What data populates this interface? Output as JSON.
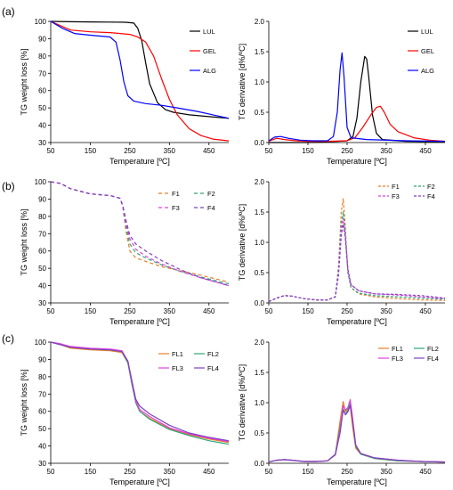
{
  "panel_labels": [
    "(a)",
    "(b)",
    "(c)"
  ],
  "chart_data": [
    {
      "type": "line",
      "panel": "(a)",
      "xlabel": "Temperature [ºC]",
      "ylabel": "TG weight loss [%]",
      "xlim": [
        50,
        500
      ],
      "ylim": [
        30,
        100
      ],
      "xticks": [
        "50",
        "150",
        "250",
        "350",
        "450"
      ],
      "yticks": [
        "30",
        "40",
        "50",
        "60",
        "70",
        "80",
        "90",
        "100"
      ],
      "legend_position": "right",
      "series": [
        {
          "name": "LUL",
          "color": "#000000",
          "dash": "solid",
          "x": [
            50,
            100,
            150,
            200,
            240,
            260,
            270,
            280,
            290,
            300,
            320,
            340,
            360,
            400,
            450,
            500
          ],
          "y": [
            100,
            99.8,
            99.7,
            99.6,
            99.5,
            99,
            96,
            89,
            76,
            64,
            53,
            49,
            47.5,
            46,
            45,
            44
          ]
        },
        {
          "name": "GEL",
          "color": "#ff0000",
          "dash": "solid",
          "x": [
            50,
            100,
            150,
            200,
            250,
            270,
            290,
            310,
            330,
            350,
            370,
            400,
            430,
            460,
            500
          ],
          "y": [
            100,
            95,
            94,
            93.5,
            92.5,
            91,
            88,
            80,
            67,
            55,
            46,
            38,
            34,
            32,
            31
          ]
        },
        {
          "name": "ALG",
          "color": "#0000ff",
          "dash": "solid",
          "x": [
            50,
            80,
            110,
            150,
            200,
            215,
            225,
            235,
            245,
            260,
            290,
            330,
            370,
            420,
            460,
            500
          ],
          "y": [
            100,
            96,
            93,
            92,
            91,
            88,
            78,
            65,
            57,
            54,
            52.5,
            51.5,
            50,
            48,
            46,
            44
          ]
        }
      ]
    },
    {
      "type": "line",
      "panel": "(a)",
      "xlabel": "Temperature [ºC]",
      "ylabel": "TG derivative [d%/ºC]",
      "xlim": [
        50,
        500
      ],
      "ylim": [
        0,
        2.0
      ],
      "xticks": [
        "50",
        "150",
        "250",
        "350",
        "450"
      ],
      "yticks": [
        "0.0",
        "0.5",
        "1.0",
        "1.5",
        "2.0"
      ],
      "legend_position": "right",
      "series": [
        {
          "name": "LUL",
          "color": "#000000",
          "dash": "solid",
          "x": [
            50,
            100,
            150,
            200,
            250,
            265,
            275,
            285,
            295,
            300,
            305,
            315,
            325,
            340,
            400,
            500
          ],
          "y": [
            0,
            0,
            0,
            0.01,
            0.03,
            0.1,
            0.4,
            1.0,
            1.42,
            1.38,
            1.1,
            0.45,
            0.15,
            0.05,
            0.02,
            0.01
          ]
        },
        {
          "name": "GEL",
          "color": "#ff0000",
          "dash": "solid",
          "x": [
            50,
            70,
            90,
            120,
            150,
            200,
            250,
            270,
            290,
            310,
            325,
            335,
            345,
            360,
            380,
            420,
            460,
            500
          ],
          "y": [
            0.02,
            0.07,
            0.05,
            0.03,
            0.02,
            0.02,
            0.03,
            0.08,
            0.25,
            0.45,
            0.58,
            0.6,
            0.5,
            0.3,
            0.18,
            0.08,
            0.04,
            0.02
          ]
        },
        {
          "name": "ALG",
          "color": "#0000ff",
          "dash": "solid",
          "x": [
            50,
            65,
            80,
            100,
            130,
            160,
            200,
            215,
            225,
            232,
            237,
            242,
            250,
            260,
            300,
            400,
            500
          ],
          "y": [
            0.03,
            0.09,
            0.1,
            0.07,
            0.04,
            0.03,
            0.03,
            0.1,
            0.5,
            1.2,
            1.48,
            1.1,
            0.25,
            0.08,
            0.05,
            0.03,
            0.02
          ]
        }
      ]
    },
    {
      "type": "line",
      "panel": "(b)",
      "xlabel": "Temperature [ºC]",
      "ylabel": "TG weight loss [%]",
      "xlim": [
        50,
        500
      ],
      "ylim": [
        30,
        100
      ],
      "xticks": [
        "50",
        "150",
        "250",
        "350",
        "450"
      ],
      "yticks": [
        "30",
        "40",
        "50",
        "60",
        "70",
        "80",
        "90",
        "100"
      ],
      "legend_position": "right",
      "series": [
        {
          "name": "F1",
          "color": "#e87f24",
          "dash": "4,3",
          "x": [
            50,
            75,
            100,
            150,
            200,
            225,
            232,
            240,
            250,
            265,
            290,
            330,
            380,
            430,
            500
          ],
          "y": [
            100,
            99,
            96,
            93,
            92,
            90.5,
            86,
            72,
            60,
            56,
            54,
            51,
            48.5,
            46,
            42
          ]
        },
        {
          "name": "F2",
          "color": "#2ba874",
          "dash": "4,3",
          "x": [
            50,
            75,
            100,
            150,
            200,
            225,
            232,
            240,
            250,
            265,
            290,
            330,
            380,
            430,
            500
          ],
          "y": [
            100,
            99,
            96,
            93,
            92,
            90.5,
            86,
            74,
            64,
            59,
            56,
            52,
            48,
            45,
            41
          ]
        },
        {
          "name": "F3",
          "color": "#e040e0",
          "dash": "4,3",
          "x": [
            50,
            75,
            100,
            150,
            200,
            225,
            232,
            240,
            250,
            265,
            290,
            330,
            380,
            430,
            500
          ],
          "y": [
            100,
            99,
            96,
            93,
            92,
            90.5,
            86,
            76,
            67,
            61,
            57,
            52.5,
            48,
            44.5,
            40
          ]
        },
        {
          "name": "F4",
          "color": "#8040c0",
          "dash": "4,3",
          "x": [
            50,
            75,
            100,
            150,
            200,
            225,
            232,
            240,
            250,
            265,
            290,
            330,
            380,
            430,
            500
          ],
          "y": [
            100,
            99,
            96,
            93,
            92,
            90.5,
            86.5,
            78,
            69,
            64,
            60,
            54.5,
            49,
            44.5,
            40
          ]
        }
      ]
    },
    {
      "type": "line",
      "panel": "(b)",
      "xlabel": "Temperature [ºC]",
      "ylabel": "TG derivative [d%/ºC]",
      "xlim": [
        50,
        500
      ],
      "ylim": [
        0,
        2.0
      ],
      "xticks": [
        "50",
        "150",
        "250",
        "350",
        "450"
      ],
      "yticks": [
        "0.0",
        "0.5",
        "1.0",
        "1.5",
        "2.0"
      ],
      "legend_position": "top-right",
      "series": [
        {
          "name": "F1",
          "color": "#e87f24",
          "dash": "3,2",
          "x": [
            50,
            70,
            90,
            110,
            140,
            170,
            200,
            220,
            228,
            235,
            240,
            245,
            252,
            260,
            280,
            320,
            380,
            440,
            500
          ],
          "y": [
            0.02,
            0.08,
            0.12,
            0.11,
            0.07,
            0.05,
            0.05,
            0.1,
            0.6,
            1.5,
            1.72,
            1.3,
            0.5,
            0.25,
            0.15,
            0.1,
            0.07,
            0.05,
            0.04
          ]
        },
        {
          "name": "F2",
          "color": "#2ba874",
          "dash": "3,2",
          "x": [
            50,
            70,
            90,
            110,
            140,
            170,
            200,
            220,
            228,
            235,
            240,
            245,
            252,
            260,
            280,
            320,
            380,
            440,
            500
          ],
          "y": [
            0.02,
            0.08,
            0.12,
            0.11,
            0.07,
            0.05,
            0.05,
            0.1,
            0.55,
            1.3,
            1.5,
            1.2,
            0.5,
            0.25,
            0.16,
            0.12,
            0.1,
            0.08,
            0.06
          ]
        },
        {
          "name": "F3",
          "color": "#e040e0",
          "dash": "3,2",
          "x": [
            50,
            70,
            90,
            110,
            140,
            170,
            200,
            220,
            228,
            235,
            240,
            245,
            252,
            260,
            280,
            320,
            380,
            440,
            500
          ],
          "y": [
            0.02,
            0.08,
            0.12,
            0.11,
            0.07,
            0.05,
            0.05,
            0.1,
            0.5,
            1.2,
            1.4,
            1.15,
            0.55,
            0.3,
            0.2,
            0.15,
            0.13,
            0.1,
            0.07
          ]
        },
        {
          "name": "F4",
          "color": "#8040c0",
          "dash": "3,2",
          "x": [
            50,
            70,
            90,
            110,
            140,
            170,
            200,
            220,
            228,
            235,
            240,
            245,
            252,
            260,
            280,
            320,
            380,
            440,
            500
          ],
          "y": [
            0.02,
            0.08,
            0.12,
            0.11,
            0.07,
            0.05,
            0.05,
            0.1,
            0.45,
            1.1,
            1.3,
            1.1,
            0.55,
            0.3,
            0.2,
            0.15,
            0.14,
            0.12,
            0.08
          ]
        }
      ]
    },
    {
      "type": "line",
      "panel": "(c)",
      "xlabel": "Temperature [ºC]",
      "ylabel": "TG weight loss [%]",
      "xlim": [
        50,
        500
      ],
      "ylim": [
        30,
        100
      ],
      "xticks": [
        "50",
        "150",
        "250",
        "350",
        "450"
      ],
      "yticks": [
        "30",
        "40",
        "50",
        "60",
        "70",
        "80",
        "90",
        "100"
      ],
      "legend_position": "top-right",
      "series": [
        {
          "name": "FL1",
          "color": "#e87f24",
          "dash": "solid",
          "x": [
            50,
            75,
            100,
            150,
            200,
            230,
            245,
            255,
            265,
            275,
            300,
            350,
            400,
            450,
            500
          ],
          "y": [
            100,
            98.5,
            96.5,
            95.5,
            95,
            94,
            88,
            76,
            65,
            60,
            56,
            50,
            46.5,
            44,
            42
          ]
        },
        {
          "name": "FL2",
          "color": "#2ba874",
          "dash": "solid",
          "x": [
            50,
            75,
            100,
            150,
            200,
            230,
            245,
            255,
            265,
            275,
            300,
            350,
            400,
            450,
            500
          ],
          "y": [
            100,
            98.5,
            97,
            96,
            95.5,
            94.5,
            88,
            76,
            65,
            60,
            55.5,
            49.5,
            46,
            43,
            41
          ]
        },
        {
          "name": "FL3",
          "color": "#e040e0",
          "dash": "solid",
          "x": [
            50,
            75,
            100,
            150,
            200,
            230,
            245,
            255,
            265,
            275,
            300,
            350,
            400,
            450,
            500
          ],
          "y": [
            100,
            99,
            97.5,
            96.5,
            96,
            95,
            89,
            77,
            66,
            61,
            57,
            50.5,
            47,
            44.5,
            42.5
          ]
        },
        {
          "name": "FL4",
          "color": "#8040c0",
          "dash": "solid",
          "x": [
            50,
            75,
            100,
            150,
            200,
            230,
            245,
            255,
            265,
            275,
            300,
            350,
            400,
            450,
            500
          ],
          "y": [
            100,
            98.5,
            97,
            96,
            95.5,
            94.5,
            89,
            78,
            67,
            63,
            58.5,
            52,
            47.5,
            45,
            43
          ]
        }
      ]
    },
    {
      "type": "line",
      "panel": "(c)",
      "xlabel": "Temperature [ºC]",
      "ylabel": "TG derivative [d%/ºC]",
      "xlim": [
        50,
        500
      ],
      "ylim": [
        0,
        2.0
      ],
      "xticks": [
        "50",
        "150",
        "250",
        "350",
        "450"
      ],
      "yticks": [
        "0.0",
        "0.5",
        "1.0",
        "1.5",
        "2.0"
      ],
      "legend_position": "top-right",
      "series": [
        {
          "name": "FL1",
          "color": "#e87f24",
          "dash": "solid",
          "x": [
            50,
            70,
            90,
            110,
            140,
            170,
            200,
            220,
            232,
            240,
            246,
            252,
            258,
            264,
            272,
            285,
            320,
            380,
            440,
            500
          ],
          "y": [
            0.02,
            0.05,
            0.06,
            0.05,
            0.03,
            0.03,
            0.04,
            0.15,
            0.7,
            1.02,
            0.85,
            0.9,
            0.95,
            0.6,
            0.25,
            0.15,
            0.08,
            0.04,
            0.03,
            0.02
          ]
        },
        {
          "name": "FL2",
          "color": "#2ba874",
          "dash": "solid",
          "x": [
            50,
            70,
            90,
            110,
            140,
            170,
            200,
            220,
            232,
            240,
            246,
            252,
            258,
            264,
            272,
            285,
            320,
            380,
            440,
            500
          ],
          "y": [
            0.02,
            0.05,
            0.06,
            0.05,
            0.03,
            0.03,
            0.04,
            0.15,
            0.6,
            0.9,
            0.8,
            0.88,
            1.0,
            0.7,
            0.28,
            0.15,
            0.08,
            0.04,
            0.03,
            0.02
          ]
        },
        {
          "name": "FL3",
          "color": "#e040e0",
          "dash": "solid",
          "x": [
            50,
            70,
            90,
            110,
            140,
            170,
            200,
            220,
            232,
            240,
            246,
            252,
            258,
            264,
            272,
            285,
            320,
            380,
            440,
            500
          ],
          "y": [
            0.02,
            0.05,
            0.06,
            0.05,
            0.03,
            0.03,
            0.04,
            0.14,
            0.55,
            0.95,
            0.88,
            0.92,
            1.05,
            0.75,
            0.3,
            0.16,
            0.09,
            0.05,
            0.03,
            0.02
          ]
        },
        {
          "name": "FL4",
          "color": "#8040c0",
          "dash": "solid",
          "x": [
            50,
            70,
            90,
            110,
            140,
            170,
            200,
            220,
            232,
            240,
            246,
            252,
            258,
            264,
            272,
            285,
            320,
            380,
            440,
            500
          ],
          "y": [
            0.02,
            0.05,
            0.06,
            0.05,
            0.03,
            0.03,
            0.04,
            0.14,
            0.5,
            0.88,
            0.8,
            0.85,
            0.95,
            0.7,
            0.3,
            0.16,
            0.09,
            0.05,
            0.03,
            0.02
          ]
        }
      ]
    }
  ]
}
